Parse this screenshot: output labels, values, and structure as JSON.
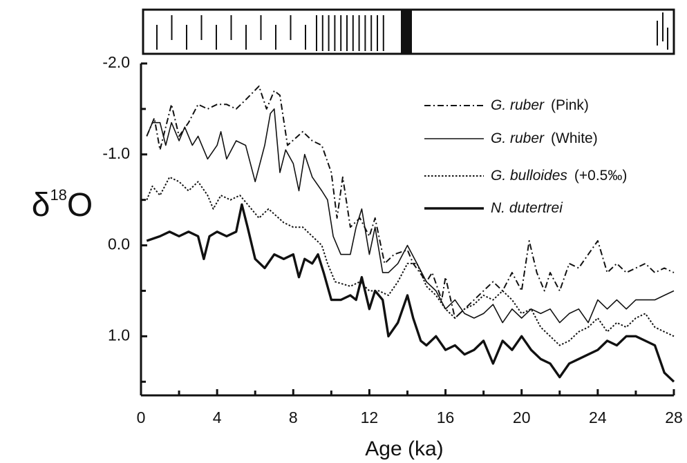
{
  "chart_data": {
    "type": "line",
    "xlabel": "Age (ka)",
    "ylabel": [
      "δ",
      "18",
      "O"
    ],
    "xlim": [
      0,
      28
    ],
    "xticks": [
      0,
      4,
      8,
      12,
      16,
      20,
      24,
      28
    ],
    "xminorticks": [
      2,
      6,
      10,
      14,
      18,
      22,
      26
    ],
    "ylim": [
      -2.0,
      1.65
    ],
    "y_inverted": true,
    "yticks": [
      {
        "value": -2,
        "label": "-2.0"
      },
      {
        "value": -1,
        "label": "-1.0"
      },
      {
        "value": 0,
        "label": "0.0"
      },
      {
        "value": 1,
        "label": "1.0"
      }
    ],
    "yminorticks": [
      -1.5,
      -0.5,
      0.5,
      1.5
    ],
    "legend": "upper right",
    "series": [
      {
        "name": "G. ruber",
        "note": "(Pink)",
        "color": "#111111",
        "style": "dashdot",
        "width": 2,
        "x": [
          0.3,
          0.7,
          1.0,
          1.3,
          1.6,
          2.0,
          2.5,
          3.0,
          3.5,
          4.0,
          4.5,
          5.0,
          5.5,
          6.2,
          6.6,
          7.0,
          7.3,
          7.7,
          8.5,
          9.0,
          9.5,
          10.0,
          10.3,
          10.6,
          11.0,
          11.5,
          12.0,
          12.3,
          12.8,
          13.3,
          14.0,
          14.3,
          15.0,
          15.3,
          15.8,
          16.0,
          16.5,
          17.0,
          17.5,
          18.5,
          19.0,
          19.5,
          20.0,
          20.4,
          20.8,
          21.2,
          21.5,
          22.0,
          22.5,
          23.0,
          23.5,
          24.0,
          24.5,
          25.0,
          25.5,
          26.0,
          26.5,
          27.0,
          27.5,
          28.0
        ],
        "values": [
          -1.2,
          -1.4,
          -1.05,
          -1.3,
          -1.55,
          -1.2,
          -1.35,
          -1.55,
          -1.5,
          -1.55,
          -1.55,
          -1.5,
          -1.6,
          -1.75,
          -1.5,
          -1.7,
          -1.65,
          -1.1,
          -1.25,
          -1.15,
          -1.1,
          -0.8,
          -0.3,
          -0.75,
          -0.2,
          -0.3,
          -0.1,
          -0.3,
          0.2,
          0.1,
          0.05,
          0.2,
          0.4,
          0.3,
          0.6,
          0.35,
          0.8,
          0.7,
          0.6,
          0.4,
          0.5,
          0.3,
          0.5,
          -0.05,
          0.3,
          0.5,
          0.3,
          0.5,
          0.2,
          0.25,
          0.1,
          -0.05,
          0.3,
          0.2,
          0.3,
          0.25,
          0.2,
          0.3,
          0.25,
          0.3
        ]
      },
      {
        "name": "G. ruber",
        "note": "(White)",
        "color": "#111111",
        "style": "solid",
        "width": 1.6,
        "x": [
          0.3,
          0.6,
          1.0,
          1.3,
          1.6,
          2.0,
          2.3,
          2.7,
          3.0,
          3.5,
          4.0,
          4.2,
          4.5,
          5.0,
          5.5,
          6.0,
          6.5,
          6.8,
          7.0,
          7.3,
          7.6,
          8.0,
          8.3,
          8.6,
          9.0,
          9.5,
          9.8,
          10.1,
          10.5,
          11.0,
          11.3,
          11.6,
          12.0,
          12.3,
          12.7,
          13.0,
          13.5,
          14.0,
          14.5,
          15.0,
          15.5,
          16.0,
          16.5,
          17.0,
          17.5,
          18.0,
          18.5,
          19.0,
          19.5,
          20.0,
          20.5,
          21.0,
          21.5,
          22.0,
          22.5,
          23.0,
          23.5,
          24.0,
          24.5,
          25.0,
          25.5,
          26.0,
          26.5,
          27.0,
          27.5,
          28.0
        ],
        "values": [
          -1.2,
          -1.35,
          -1.35,
          -1.1,
          -1.35,
          -1.15,
          -1.3,
          -1.1,
          -1.2,
          -0.95,
          -1.1,
          -1.25,
          -0.95,
          -1.15,
          -1.1,
          -0.7,
          -1.1,
          -1.45,
          -1.5,
          -0.8,
          -1.05,
          -0.9,
          -0.6,
          -1.0,
          -0.75,
          -0.6,
          -0.5,
          -0.1,
          0.1,
          0.1,
          -0.2,
          -0.4,
          0.1,
          -0.2,
          0.3,
          0.3,
          0.2,
          0.0,
          0.2,
          0.4,
          0.5,
          0.7,
          0.6,
          0.75,
          0.8,
          0.75,
          0.65,
          0.85,
          0.7,
          0.8,
          0.7,
          0.75,
          0.7,
          0.85,
          0.75,
          0.7,
          0.85,
          0.6,
          0.7,
          0.6,
          0.7,
          0.6,
          0.6,
          0.6,
          0.55,
          0.5
        ]
      },
      {
        "name": "G. bulloides",
        "note": "(+0.5‰)",
        "color": "#111111",
        "style": "dotted",
        "width": 2,
        "x": [
          0.3,
          0.6,
          1.0,
          1.5,
          2.0,
          2.5,
          3.0,
          3.5,
          3.8,
          4.2,
          4.7,
          5.2,
          5.8,
          6.2,
          6.7,
          7.5,
          8.0,
          8.5,
          9.0,
          9.5,
          9.8,
          10.2,
          11.0,
          11.5,
          12.0,
          12.5,
          13.0,
          13.5,
          14.0,
          14.5,
          15.0,
          15.5,
          16.0,
          16.5,
          17.0,
          17.5,
          18.0,
          18.5,
          19.0,
          19.5,
          20.0,
          20.5,
          21.0,
          21.5,
          22.0,
          22.5,
          23.0,
          23.5,
          24.0,
          24.5,
          25.0,
          25.5,
          26.0,
          26.5,
          27.0,
          27.5,
          28.0
        ],
        "values": [
          -0.5,
          -0.65,
          -0.55,
          -0.75,
          -0.7,
          -0.6,
          -0.7,
          -0.55,
          -0.4,
          -0.55,
          -0.5,
          -0.55,
          -0.4,
          -0.3,
          -0.4,
          -0.25,
          -0.2,
          -0.2,
          -0.1,
          0.0,
          0.2,
          0.4,
          0.45,
          0.4,
          0.5,
          0.5,
          0.55,
          0.4,
          0.2,
          0.2,
          0.45,
          0.55,
          0.7,
          0.8,
          0.7,
          0.65,
          0.55,
          0.6,
          0.5,
          0.6,
          0.75,
          0.7,
          0.9,
          1.0,
          1.1,
          1.05,
          0.95,
          0.9,
          0.8,
          0.95,
          0.85,
          0.9,
          0.8,
          0.75,
          0.9,
          0.95,
          1.0
        ]
      },
      {
        "name": "N. dutertrei",
        "color": "#111111",
        "style": "solid",
        "width": 3.4,
        "x": [
          0.3,
          1.0,
          1.5,
          2.0,
          2.5,
          3.0,
          3.3,
          3.6,
          4.0,
          4.5,
          5.0,
          5.3,
          5.6,
          6.0,
          6.5,
          7.0,
          7.5,
          8.0,
          8.3,
          8.6,
          9.0,
          9.3,
          9.6,
          10.0,
          10.5,
          11.0,
          11.3,
          11.6,
          12.0,
          12.3,
          12.7,
          13.0,
          13.5,
          14.0,
          14.3,
          14.7,
          15.0,
          15.5,
          16.0,
          16.5,
          17.0,
          17.5,
          18.0,
          18.5,
          19.0,
          19.5,
          20.0,
          20.5,
          21.0,
          21.5,
          22.0,
          22.5,
          23.0,
          23.5,
          24.0,
          24.5,
          25.0,
          25.5,
          26.0,
          26.5,
          27.0,
          27.5,
          28.0
        ],
        "values": [
          -0.05,
          -0.1,
          -0.15,
          -0.1,
          -0.15,
          -0.1,
          0.15,
          -0.1,
          -0.15,
          -0.1,
          -0.15,
          -0.45,
          -0.2,
          0.15,
          0.25,
          0.1,
          0.15,
          0.1,
          0.35,
          0.15,
          0.2,
          0.1,
          0.3,
          0.6,
          0.6,
          0.55,
          0.6,
          0.35,
          0.7,
          0.5,
          0.6,
          1.0,
          0.85,
          0.55,
          0.8,
          1.05,
          1.1,
          1.0,
          1.15,
          1.1,
          1.2,
          1.15,
          1.05,
          1.3,
          1.05,
          1.15,
          1.0,
          1.15,
          1.25,
          1.3,
          1.45,
          1.3,
          1.25,
          1.2,
          1.15,
          1.05,
          1.1,
          1.0,
          1.0,
          1.05,
          1.1,
          1.4,
          1.5
        ]
      }
    ]
  }
}
